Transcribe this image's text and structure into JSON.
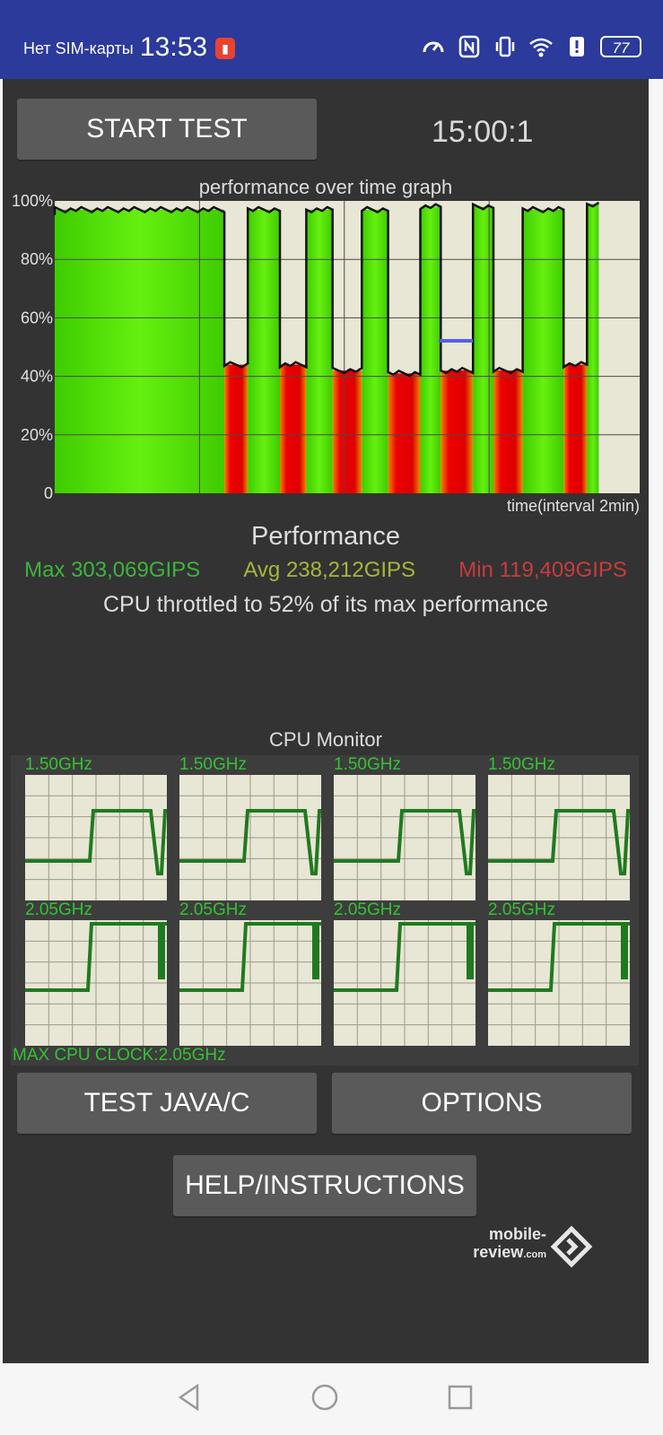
{
  "status_bar": {
    "carrier": "Нет SIM-карты",
    "time": "13:53",
    "battery_level": "77",
    "icons": [
      "battery-saver-alert-icon",
      "speed-icon",
      "nfc-icon",
      "vibrate-icon",
      "wifi-icon",
      "alert-icon",
      "battery-icon"
    ]
  },
  "toolbar": {
    "start_label": "START TEST",
    "timer": "15:00:1"
  },
  "graph": {
    "title": "performance over time graph",
    "xlabel": "time(interval 2min)",
    "y_ticks": [
      "100%",
      "80%",
      "60%",
      "40%",
      "20%",
      "0"
    ]
  },
  "performance": {
    "title": "Performance",
    "max": "Max 303,069GIPS",
    "avg": "Avg 238,212GIPS",
    "min": "Min 119,409GIPS",
    "throttle": "CPU throttled to 52% of its max performance"
  },
  "cpu_monitor": {
    "title": "CPU Monitor",
    "cores": [
      {
        "freq": "1.50GHz"
      },
      {
        "freq": "1.50GHz"
      },
      {
        "freq": "1.50GHz"
      },
      {
        "freq": "1.50GHz"
      },
      {
        "freq": "2.05GHz"
      },
      {
        "freq": "2.05GHz"
      },
      {
        "freq": "2.05GHz"
      },
      {
        "freq": "2.05GHz"
      }
    ],
    "max_clock": "MAX CPU CLOCK:2.05GHz"
  },
  "buttons": {
    "test_java": "TEST JAVA/C",
    "options": "OPTIONS",
    "help": "HELP/INSTRUCTIONS"
  },
  "watermark": {
    "line1": "mobile-",
    "line2": "review",
    "suffix": ".com"
  },
  "colors": {
    "app_bg": "#333333",
    "status_bar": "#2b3a9b",
    "high": "#55ee00",
    "low": "#ee0000",
    "graph_bg": "#e8e6d4"
  },
  "chart_data": {
    "type": "area",
    "title": "performance over time graph",
    "xlabel": "time(interval 2min)",
    "ylabel": "",
    "ylim": [
      0,
      100
    ],
    "grid": true,
    "segments": [
      {
        "start": 0,
        "end": 29,
        "level": 97
      },
      {
        "start": 29,
        "end": 33,
        "level": 44
      },
      {
        "start": 33,
        "end": 38.5,
        "level": 97
      },
      {
        "start": 38.5,
        "end": 43,
        "level": 44
      },
      {
        "start": 43,
        "end": 47.5,
        "level": 97
      },
      {
        "start": 47.5,
        "end": 52.5,
        "level": 42
      },
      {
        "start": 52.5,
        "end": 57,
        "level": 97
      },
      {
        "start": 57,
        "end": 62.5,
        "level": 41
      },
      {
        "start": 62.5,
        "end": 66,
        "level": 98
      },
      {
        "start": 66,
        "end": 71.5,
        "level": 42
      },
      {
        "start": 71.5,
        "end": 75,
        "level": 98
      },
      {
        "start": 75,
        "end": 80,
        "level": 42
      },
      {
        "start": 80,
        "end": 87,
        "level": 97
      },
      {
        "start": 87,
        "end": 91,
        "level": 44
      },
      {
        "start": 91,
        "end": 93,
        "level": 99
      }
    ],
    "x_end": 100
  }
}
